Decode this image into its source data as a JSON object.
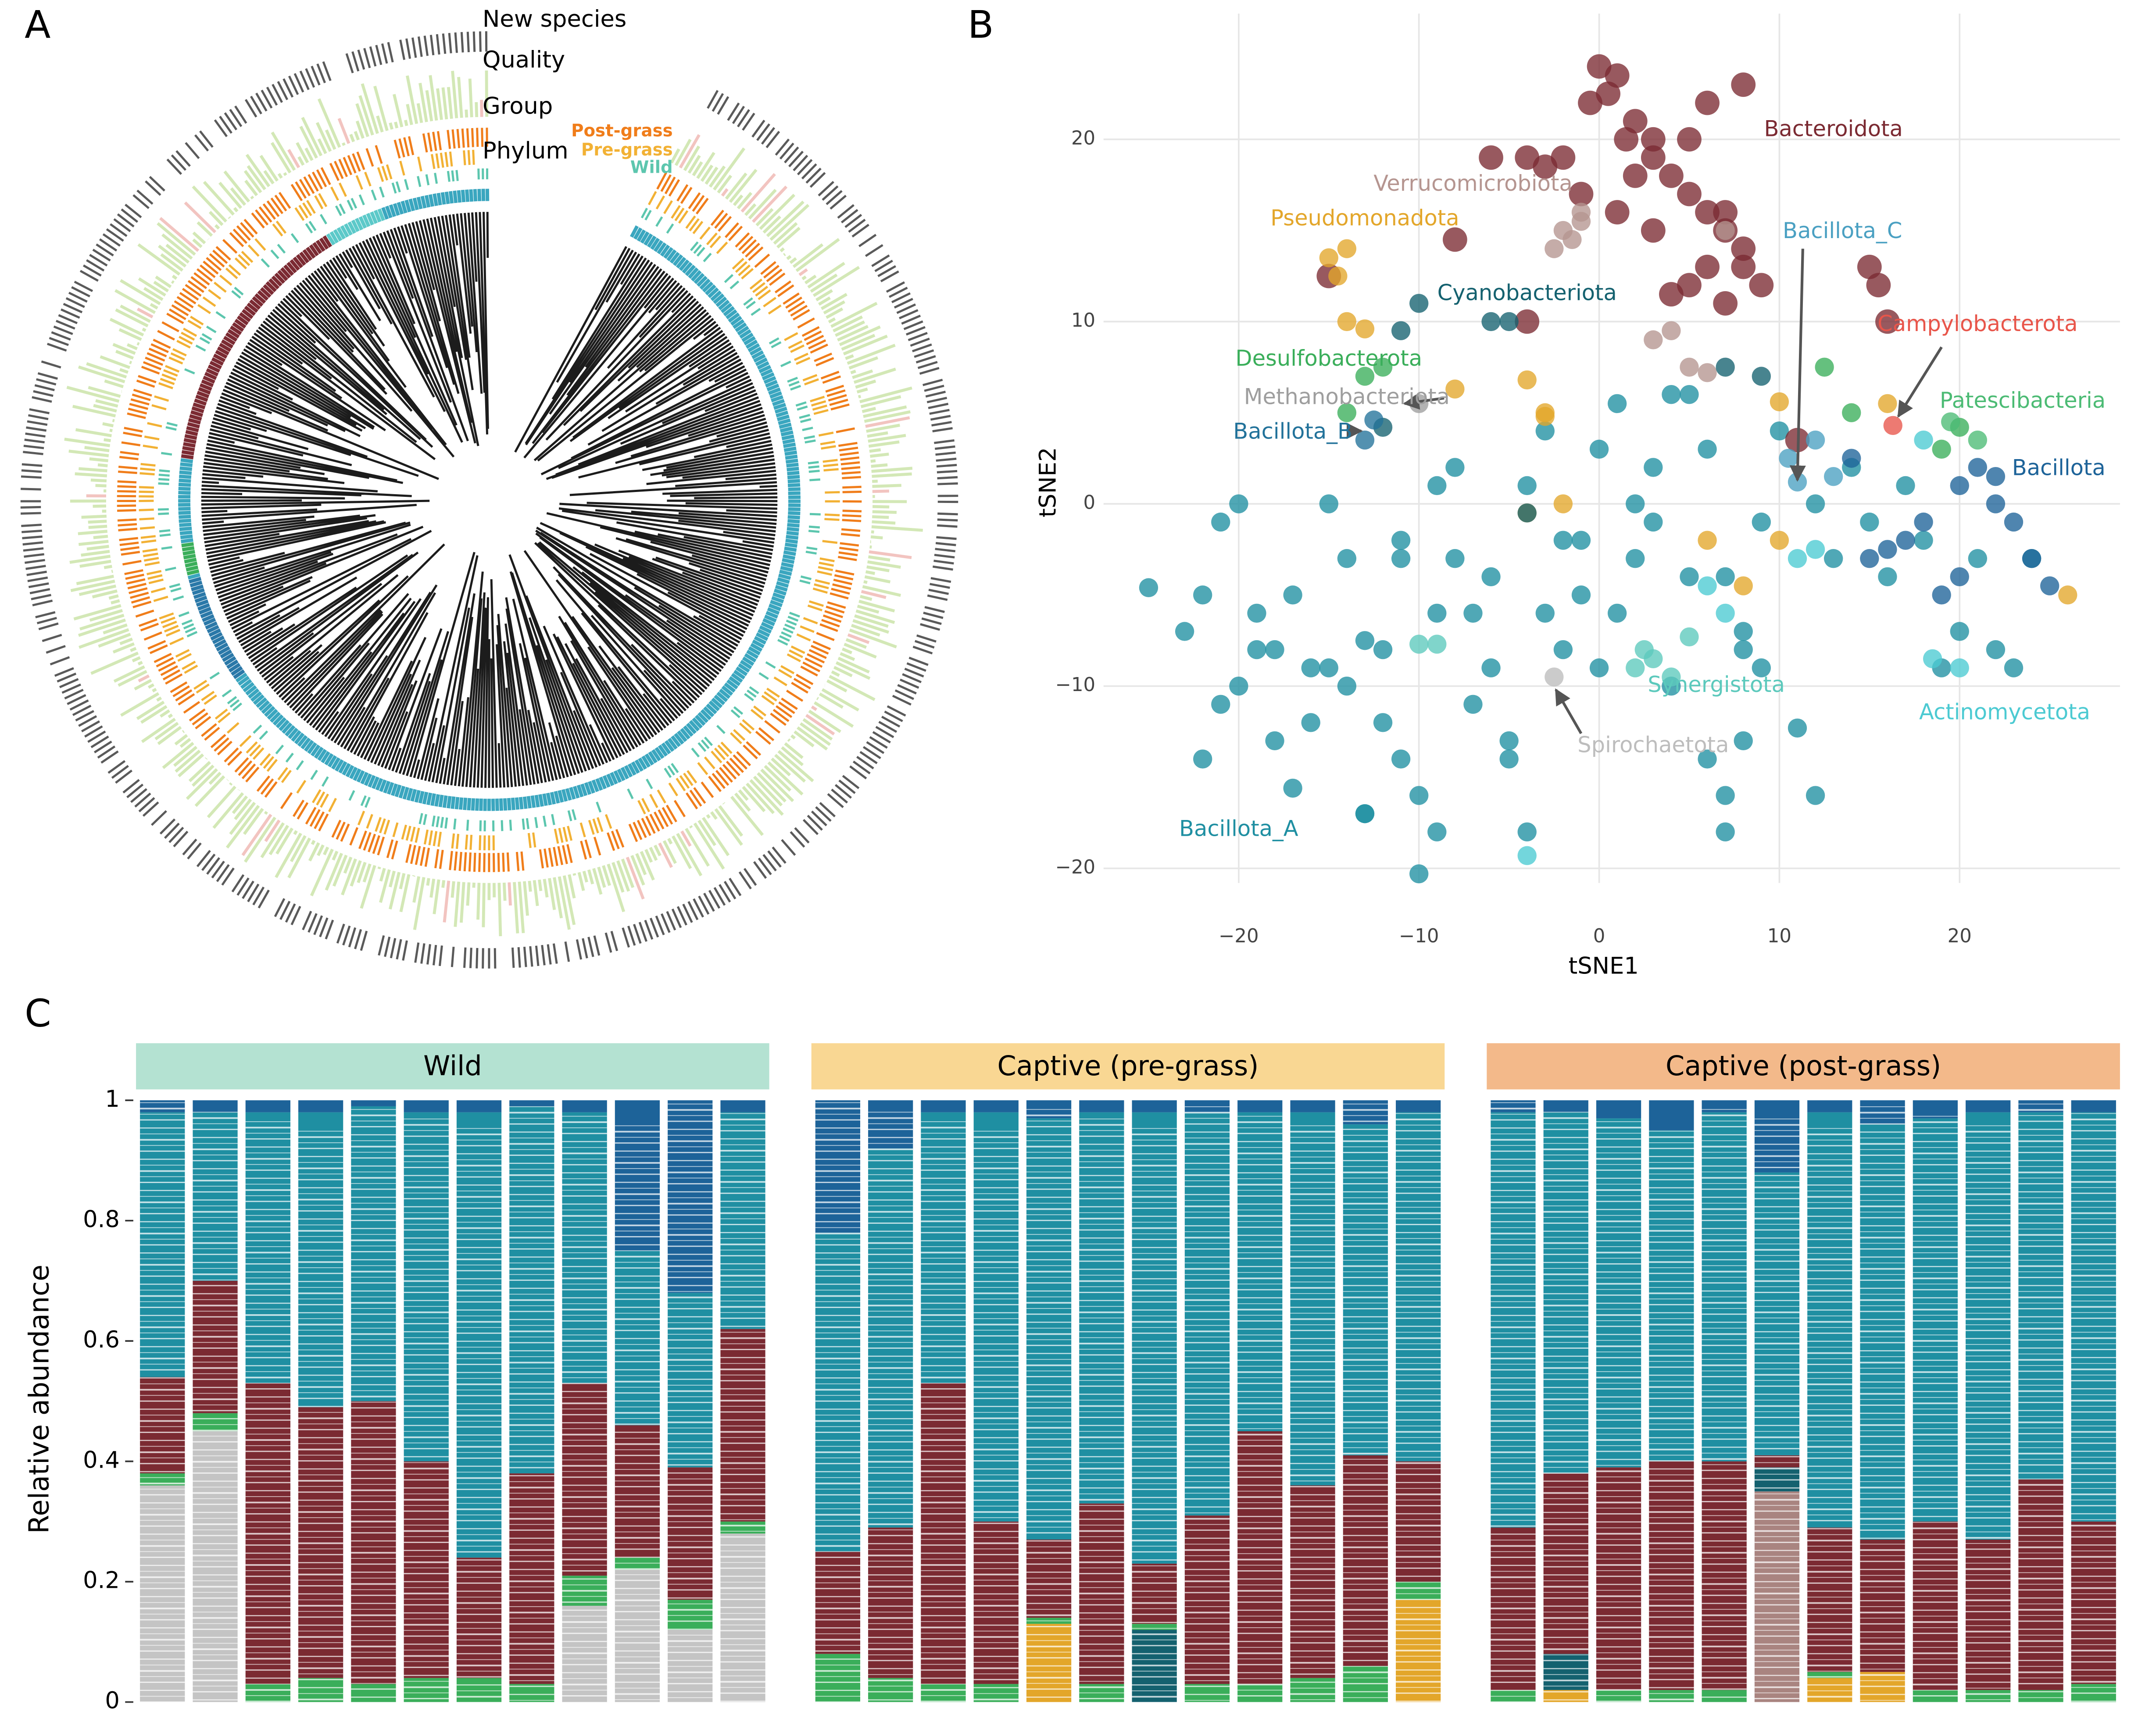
{
  "chart_data": [
    {
      "type": "tree",
      "panel": "A",
      "ring_labels": [
        "New species",
        "Quality",
        "Group",
        "Phylum"
      ],
      "groups": [
        {
          "name": "Post-grass",
          "color": "#f07d1a"
        },
        {
          "name": "Pre-grass",
          "color": "#f2b134"
        },
        {
          "name": "Wild",
          "color": "#5cc6ae"
        }
      ]
    },
    {
      "type": "scatter",
      "panel": "B",
      "xlabel": "tSNE1",
      "ylabel": "tSNE2",
      "xlim": [
        -27.5,
        28.9
      ],
      "ylim": [
        -20.8,
        26.9
      ],
      "xticks": [
        {
          "value": -20,
          "label": "−20"
        },
        {
          "value": -10,
          "label": "−10"
        },
        0,
        10,
        20
      ],
      "yticks": [
        {
          "value": -20,
          "label": "−20"
        },
        {
          "value": -10,
          "label": "−10"
        },
        0,
        10,
        20
      ],
      "grid": true,
      "series": [
        {
          "name": "Bacillota_A",
          "color": "#1f8fa2",
          "x": [
            -25,
            -22,
            -21,
            -20,
            -19,
            -18,
            -17,
            -16,
            -15,
            -14,
            -13,
            -12,
            -11,
            -10,
            -9,
            -8,
            -7,
            -6,
            -5,
            -4,
            -3,
            -2,
            -1,
            0,
            1,
            2,
            3,
            4,
            5,
            6,
            7,
            8,
            9,
            10,
            11,
            12,
            13,
            14,
            15,
            16,
            17,
            18,
            19,
            20,
            21,
            22,
            23,
            24,
            -23,
            -21,
            -19,
            -17,
            -15,
            -13,
            -11,
            -9,
            -7,
            -5,
            -3,
            -1,
            1,
            3,
            5,
            7,
            9,
            -20,
            -16,
            -12,
            -8,
            -4,
            0,
            4,
            8,
            12,
            -14,
            -10,
            -6,
            -2,
            2,
            6,
            -18,
            -22,
            -11,
            -9,
            7,
            8,
            -13
          ],
          "y": [
            -4.6,
            -5,
            -11,
            -10,
            -8,
            -13,
            -5,
            -12,
            0,
            -3,
            -17,
            -8,
            -14,
            -20.3,
            -6,
            2,
            -11,
            -9,
            -14,
            1,
            4,
            -2,
            -5,
            3,
            -6,
            -3,
            2,
            -10,
            6,
            -14,
            -18,
            -8,
            -1,
            4,
            -12.3,
            0,
            -3,
            2,
            -1,
            -4,
            1,
            -2,
            -9,
            -7,
            -3,
            -8,
            -9,
            -3,
            -7,
            -1,
            -6,
            -15.6,
            -9,
            -17,
            -3,
            1,
            -6,
            -13,
            -6,
            -2,
            5.5,
            -1,
            -4,
            -16,
            -9,
            0,
            -9,
            -12,
            -3,
            -18,
            -9,
            6,
            -13,
            -16,
            -10,
            -16,
            -4,
            -8,
            0,
            3,
            -8,
            -14,
            -2,
            -18,
            -4,
            -7,
            -7.5
          ]
        },
        {
          "name": "Bacteroidota",
          "color": "#7b2a32",
          "x": [
            0,
            1,
            0.5,
            -0.5,
            2,
            1.5,
            3,
            4,
            5,
            6,
            7,
            8,
            6,
            5,
            4,
            3,
            2,
            -2,
            -3,
            -4,
            8,
            9,
            7,
            6,
            8,
            -1,
            1,
            3,
            15,
            15.5,
            16,
            7,
            5,
            -6,
            -8,
            -15,
            -4,
            11
          ],
          "y": [
            24,
            23.5,
            22.5,
            22,
            21,
            20,
            19,
            18,
            17,
            16,
            15,
            14,
            13,
            12,
            11.5,
            20,
            18,
            19,
            18.5,
            19,
            13,
            12,
            11,
            22,
            23,
            17,
            16,
            15,
            13,
            12,
            10,
            16,
            20,
            19,
            14.5,
            12.5,
            10,
            3.5
          ]
        },
        {
          "name": "Verrucomicrobiota",
          "color": "#b59590",
          "x": [
            -2,
            -1.5,
            -1,
            -2.5,
            -1,
            5,
            6,
            3,
            4,
            7
          ],
          "y": [
            15,
            14.5,
            15.5,
            14,
            16,
            7.5,
            7.2,
            9,
            9.5,
            15
          ]
        },
        {
          "name": "Pseudomonadota",
          "color": "#e3a62a",
          "x": [
            -15,
            -14,
            -14.5,
            -14,
            -13,
            -8,
            -4,
            -3,
            -3,
            10,
            16,
            26,
            10,
            -4,
            -2,
            8,
            6
          ],
          "y": [
            13.5,
            14,
            12.5,
            10,
            9.6,
            6.3,
            6.8,
            5,
            4.8,
            5.6,
            5.5,
            -5,
            -2,
            -0.5,
            0,
            -4.5,
            -2
          ]
        },
        {
          "name": "Cyanobacteriota",
          "color": "#14616f",
          "x": [
            -5,
            -6,
            -10,
            -11,
            7,
            9,
            -12,
            -4
          ],
          "y": [
            10,
            10,
            11,
            9.5,
            7.5,
            7,
            4.2,
            -0.5
          ]
        },
        {
          "name": "Desulfobacterota",
          "color": "#3aae5a",
          "x": [
            -12,
            -13,
            -14,
            12.5,
            20,
            19,
            14
          ],
          "y": [
            7.5,
            7,
            5,
            7.5,
            4.2,
            3,
            5
          ]
        },
        {
          "name": "Methanobacteriota",
          "color": "#9e9e9e",
          "x": [
            -10
          ],
          "y": [
            5.5
          ]
        },
        {
          "name": "Bacillota_B",
          "color": "#22729a",
          "x": [
            -12.5,
            -13
          ],
          "y": [
            4.6,
            3.5
          ]
        },
        {
          "name": "Bacillota_C",
          "color": "#4aa0c2",
          "x": [
            11,
            10.5,
            12,
            13
          ],
          "y": [
            1.2,
            2.5,
            3.5,
            1.5
          ]
        },
        {
          "name": "Campylobacterota",
          "color": "#e8554a",
          "x": [
            16.3
          ],
          "y": [
            4.3
          ]
        },
        {
          "name": "Patescibacteria",
          "color": "#4cbb74",
          "x": [
            21,
            19.5
          ],
          "y": [
            3.5,
            4.5
          ]
        },
        {
          "name": "Bacillota",
          "color": "#1d6399",
          "x": [
            20,
            21,
            22,
            23,
            24,
            25,
            18,
            17,
            16,
            15,
            19,
            20,
            22,
            14
          ],
          "y": [
            1,
            2,
            0,
            -1,
            -3,
            -4.5,
            -1,
            -2,
            -2.5,
            -3,
            -5,
            -4,
            1.5,
            2.5
          ]
        },
        {
          "name": "Synergistota",
          "color": "#5cc9bc",
          "x": [
            2,
            3,
            2.5,
            5,
            -9,
            -10,
            4
          ],
          "y": [
            -9,
            -8.5,
            -8,
            -7.3,
            -7.7,
            -7.7,
            -9.5
          ]
        },
        {
          "name": "Actinomycetota",
          "color": "#4ccad2",
          "x": [
            18.5,
            12,
            11,
            6,
            7,
            -4,
            20,
            18
          ],
          "y": [
            -8.5,
            -2.5,
            -3,
            -4.5,
            -6,
            -19.3,
            -9,
            3.5
          ]
        },
        {
          "name": "Spirochaetota",
          "color": "#bdbdbd",
          "x": [
            -2.5
          ],
          "y": [
            -9.5
          ]
        }
      ]
    },
    {
      "type": "stacked_bar",
      "panel": "C",
      "ylabel": "Relative abundance",
      "ylim": [
        0,
        1
      ],
      "yticks": [
        0,
        0.2,
        0.4,
        0.6,
        0.8,
        1
      ],
      "facets": [
        {
          "title": "Wild",
          "strip_color": "#b4e2d2",
          "series": [
            {
              "color": "#c4c4c4",
              "values": [
                0.36,
                0.45,
                0,
                0,
                0,
                0,
                0,
                0,
                0.16,
                0.22,
                0.12,
                0.28
              ]
            },
            {
              "color": "#3aae5a",
              "values": [
                0.02,
                0.03,
                0.03,
                0.04,
                0.03,
                0.04,
                0.04,
                0.03,
                0.05,
                0.02,
                0.05,
                0.02
              ]
            },
            {
              "color": "#7b2a32",
              "values": [
                0.16,
                0.22,
                0.5,
                0.45,
                0.47,
                0.36,
                0.2,
                0.35,
                0.32,
                0.22,
                0.22,
                0.32
              ]
            },
            {
              "color": "#1f8fa2",
              "values": [
                0.44,
                0.28,
                0.45,
                0.49,
                0.49,
                0.58,
                0.74,
                0.61,
                0.45,
                0.29,
                0.29,
                0.36
              ]
            },
            {
              "color": "#1d6399",
              "values": [
                0.02,
                0.02,
                0.02,
                0.02,
                0.01,
                0.02,
                0.02,
                0.01,
                0.02,
                0.25,
                0.32,
                0.02
              ]
            }
          ]
        },
        {
          "title": "Captive (pre-grass)",
          "strip_color": "#f9d793",
          "series": [
            {
              "color": "#e3a62a",
              "values": [
                0,
                0,
                0,
                0,
                0.13,
                0,
                0,
                0,
                0,
                0,
                0,
                0.17
              ]
            },
            {
              "color": "#14616f",
              "values": [
                0,
                0,
                0,
                0,
                0,
                0,
                0.12,
                0,
                0,
                0,
                0,
                0
              ]
            },
            {
              "color": "#3aae5a",
              "values": [
                0.08,
                0.04,
                0.03,
                0.03,
                0.01,
                0.03,
                0.01,
                0.03,
                0.03,
                0.04,
                0.06,
                0.03
              ]
            },
            {
              "color": "#7b2a32",
              "values": [
                0.17,
                0.25,
                0.5,
                0.27,
                0.13,
                0.3,
                0.1,
                0.28,
                0.42,
                0.32,
                0.35,
                0.2
              ]
            },
            {
              "color": "#1f8fa2",
              "values": [
                0.53,
                0.63,
                0.45,
                0.68,
                0.7,
                0.65,
                0.75,
                0.67,
                0.53,
                0.62,
                0.55,
                0.58
              ]
            },
            {
              "color": "#1d6399",
              "values": [
                0.22,
                0.08,
                0.02,
                0.02,
                0.03,
                0.02,
                0.02,
                0.02,
                0.02,
                0.02,
                0.04,
                0.02
              ]
            }
          ]
        },
        {
          "title": "Captive (post-grass)",
          "strip_color": "#f3b98a",
          "series": [
            {
              "color": "#a98480",
              "values": [
                0,
                0,
                0,
                0,
                0,
                0.35,
                0,
                0,
                0,
                0,
                0,
                0
              ]
            },
            {
              "color": "#e3a62a",
              "values": [
                0,
                0.02,
                0,
                0,
                0,
                0,
                0.04,
                0.05,
                0,
                0,
                0,
                0
              ]
            },
            {
              "color": "#14616f",
              "values": [
                0,
                0.06,
                0,
                0,
                0,
                0.04,
                0,
                0,
                0,
                0,
                0,
                0
              ]
            },
            {
              "color": "#3aae5a",
              "values": [
                0.02,
                0,
                0.02,
                0.02,
                0.02,
                0,
                0.01,
                0,
                0.02,
                0.02,
                0.02,
                0.03
              ]
            },
            {
              "color": "#7b2a32",
              "values": [
                0.27,
                0.3,
                0.37,
                0.38,
                0.38,
                0.02,
                0.24,
                0.22,
                0.28,
                0.25,
                0.35,
                0.27
              ]
            },
            {
              "color": "#1f8fa2",
              "values": [
                0.69,
                0.6,
                0.58,
                0.55,
                0.58,
                0.47,
                0.69,
                0.69,
                0.67,
                0.71,
                0.61,
                0.68
              ]
            },
            {
              "color": "#1d6399",
              "values": [
                0.02,
                0.02,
                0.03,
                0.05,
                0.02,
                0.12,
                0.02,
                0.04,
                0.03,
                0.02,
                0.02,
                0.02
              ]
            }
          ]
        }
      ]
    }
  ]
}
